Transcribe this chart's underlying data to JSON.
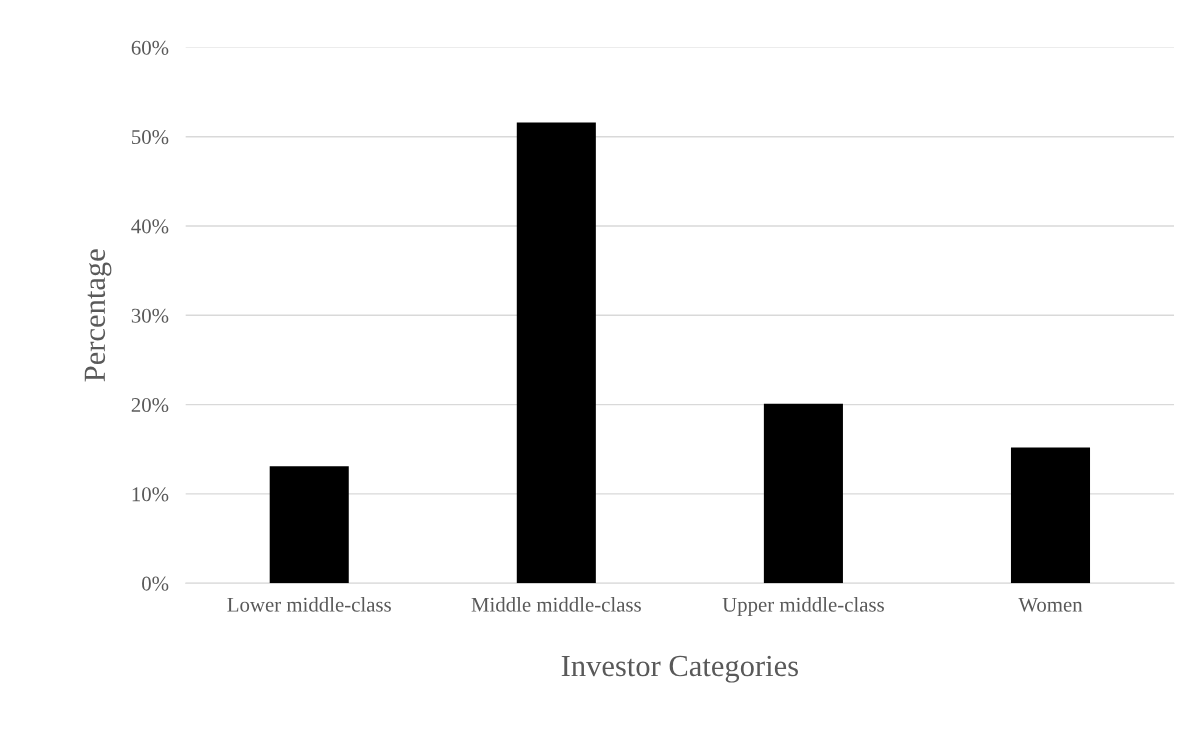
{
  "chart_data": {
    "type": "bar",
    "xlabel": "Investor Categories",
    "ylabel": "Percentage",
    "categories": [
      "Lower middle-class",
      "Middle middle-class",
      "Upper middle-class",
      "Women"
    ],
    "values": [
      13.1,
      51.6,
      20.1,
      15.2
    ],
    "color": "#000000",
    "ylim": [
      0,
      60
    ],
    "yticks": [
      {
        "value": 0,
        "label": "0%"
      },
      {
        "value": 10,
        "label": "10%"
      },
      {
        "value": 20,
        "label": "20%"
      },
      {
        "value": 30,
        "label": "30%"
      },
      {
        "value": 40,
        "label": "40%"
      },
      {
        "value": 50,
        "label": "50%"
      },
      {
        "value": 60,
        "label": "60%"
      }
    ],
    "grid": "y",
    "legend": false
  }
}
